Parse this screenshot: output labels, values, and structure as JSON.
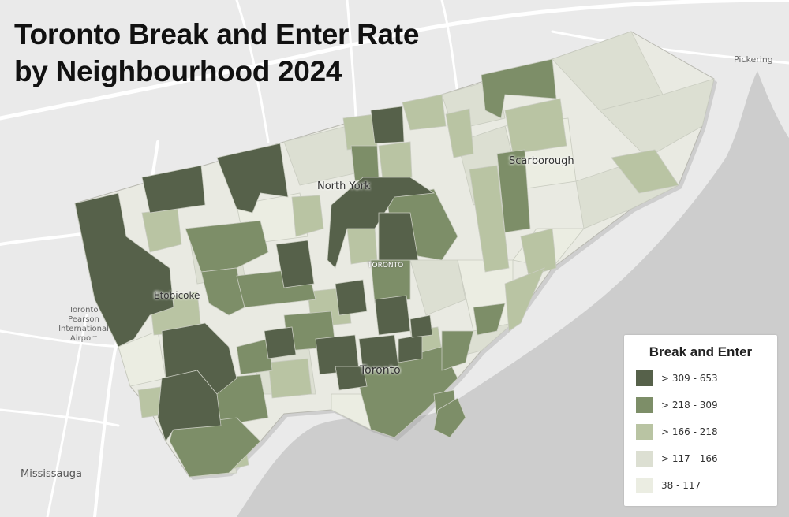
{
  "title": {
    "line1": "Toronto Break and Enter Rate",
    "line2": "by Neighbourhood 2024"
  },
  "places": {
    "north_york": "North York",
    "scarborough": "Scarborough",
    "etobicoke": "Etobicoke",
    "toronto_caps": "TORONTO",
    "toronto": "Toronto",
    "pickering": "Pickering",
    "mississauga": "Mississauga",
    "airport_line1": "Toronto",
    "airport_line2": "Pearson",
    "airport_line3": "International",
    "airport_line4": "Airport"
  },
  "legend": {
    "title": "Break and Enter",
    "classes": [
      {
        "label": "> 309 - 653",
        "color": "#56614a"
      },
      {
        "label": "> 218 - 309",
        "color": "#7d8e68"
      },
      {
        "label": "> 166 - 218",
        "color": "#b9c4a3"
      },
      {
        "label": "> 117 - 166",
        "color": "#dcdfd2"
      },
      {
        "label": "38 - 117",
        "color": "#ebede2"
      }
    ]
  },
  "colors": {
    "water": "#cdcdcd",
    "land": "#eaeaea",
    "roads": "#ffffff"
  }
}
